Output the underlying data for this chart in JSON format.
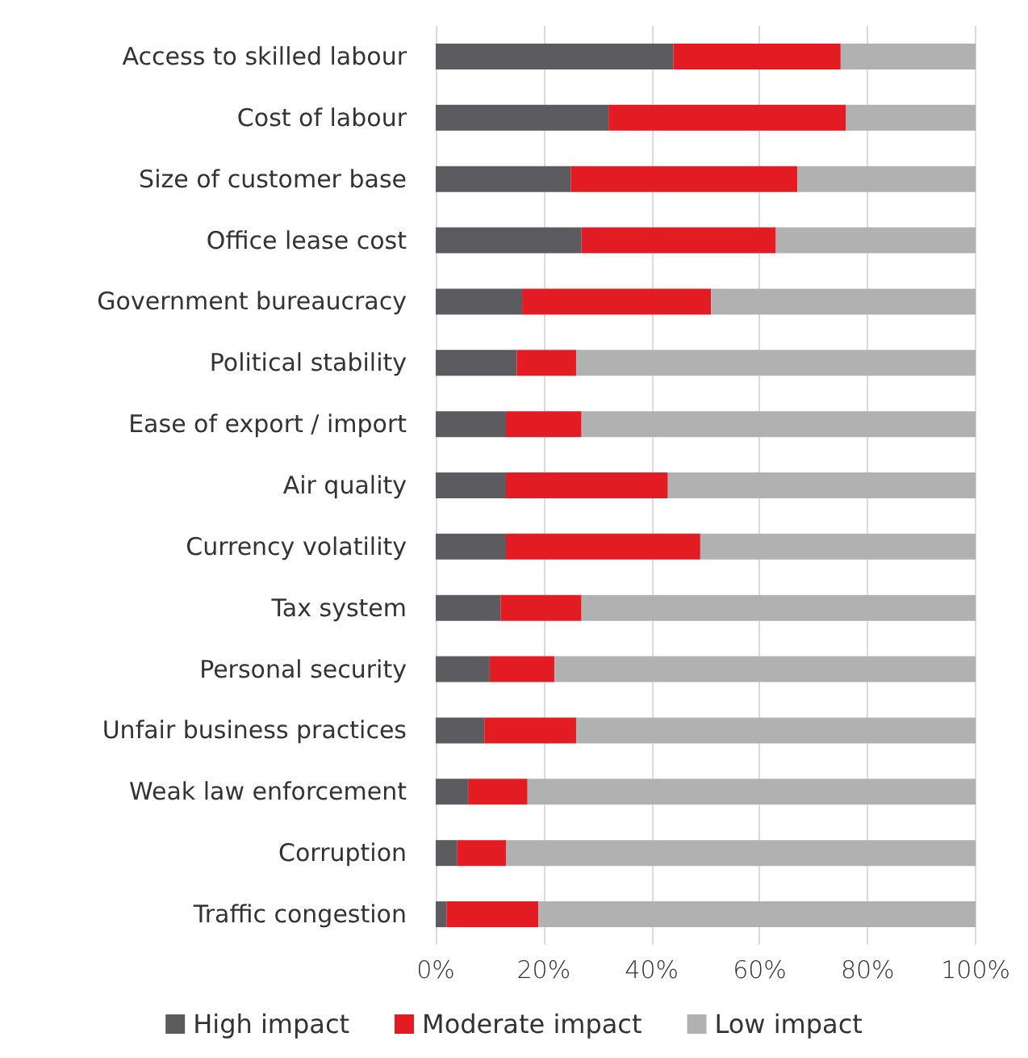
{
  "chart_data": {
    "type": "bar",
    "orientation": "horizontal",
    "stacked": true,
    "categories": [
      "Access to skilled labour",
      "Cost of labour",
      "Size of customer base",
      "Office lease cost",
      "Government bureaucracy",
      "Political stability",
      "Ease of export / import",
      "Air quality",
      "Currency volatility",
      "Tax system",
      "Personal security",
      "Unfair business practices",
      "Weak law enforcement",
      "Corruption",
      "Traffic congestion"
    ],
    "series": [
      {
        "name": "High impact",
        "color": "#5b5b60",
        "values": [
          44,
          32,
          25,
          27,
          16,
          15,
          13,
          13,
          13,
          12,
          10,
          9,
          6,
          4,
          2
        ]
      },
      {
        "name": "Moderate impact",
        "color": "#e31b23",
        "values": [
          31,
          44,
          42,
          36,
          35,
          11,
          14,
          30,
          36,
          15,
          12,
          17,
          11,
          9,
          17
        ]
      },
      {
        "name": "Low impact",
        "color": "#b1b1b1",
        "values": [
          25,
          24,
          33,
          37,
          49,
          74,
          73,
          57,
          51,
          73,
          78,
          74,
          83,
          87,
          81
        ]
      }
    ],
    "xlim": [
      0,
      100
    ],
    "xticks": [
      {
        "value": 0,
        "label": "0%"
      },
      {
        "value": 20,
        "label": "20%"
      },
      {
        "value": 40,
        "label": "40%"
      },
      {
        "value": 60,
        "label": "60%"
      },
      {
        "value": 80,
        "label": "80%"
      },
      {
        "value": 100,
        "label": "100%"
      }
    ],
    "grid": "x",
    "legend": "bottom"
  }
}
